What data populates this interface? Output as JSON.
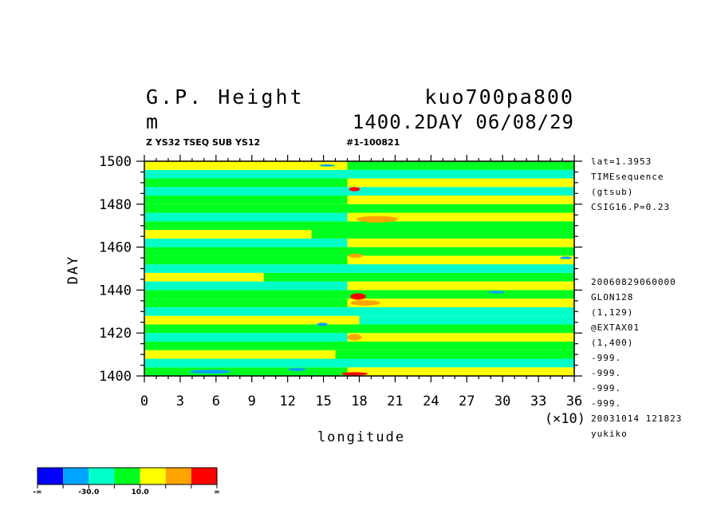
{
  "header": {
    "title_left": "G.P. Height",
    "title_right": "kuo700pa800",
    "unit": "m",
    "time_label": "1400.2DAY 06/08/29",
    "subtitle_left": "Z YS32 TSEQ SUB YS12",
    "subtitle_right": "#1-100821"
  },
  "side_info": {
    "top": [
      "lat=1.3953",
      "TIMEsequence",
      "(gtsub)",
      "CSIG16.P=0.23"
    ],
    "bottom": [
      "20060829060000",
      "GLON128",
      "(1,129)",
      "@EXTAX01",
      "(1,400)",
      "-999.",
      "-999.",
      "-999.",
      "-999.",
      "20031014 121823",
      "yukiko"
    ]
  },
  "colorbar": {
    "colors": [
      "#0000ff",
      "#00a5ff",
      "#00ffc8",
      "#00ff1e",
      "#ffff00",
      "#ffa500",
      "#ff0000"
    ],
    "labels": [
      {
        "text": "-∞",
        "boundary": 0
      },
      {
        "text": "-30.0",
        "boundary": 2
      },
      {
        "text": "10.0",
        "boundary": 4
      },
      {
        "text": "∞",
        "boundary": 7
      }
    ]
  },
  "chart_data": {
    "type": "heatmap",
    "xlabel": "longitude",
    "ylabel": "DAY",
    "x_multiplier_label": "(×10)",
    "xlim": [
      0,
      36
    ],
    "ylim": [
      1400,
      1500
    ],
    "xticks": [
      0,
      3,
      6,
      9,
      12,
      15,
      18,
      21,
      24,
      27,
      30,
      33,
      36
    ],
    "yticks": [
      1400,
      1420,
      1440,
      1460,
      1480,
      1500
    ],
    "bands": [
      {
        "day_from": 1400,
        "day_to": 1404,
        "segments": [
          {
            "from": 0,
            "to": 17,
            "color": "#00ff1e"
          },
          {
            "from": 17,
            "to": 36,
            "color": "#ffff00"
          }
        ]
      },
      {
        "day_from": 1404,
        "day_to": 1408,
        "segments": [
          {
            "from": 0,
            "to": 36,
            "color": "#00ffc8"
          }
        ]
      },
      {
        "day_from": 1408,
        "day_to": 1412,
        "segments": [
          {
            "from": 0,
            "to": 16,
            "color": "#ffff00"
          },
          {
            "from": 16,
            "to": 36,
            "color": "#00ff1e"
          }
        ]
      },
      {
        "day_from": 1412,
        "day_to": 1416,
        "segments": [
          {
            "from": 0,
            "to": 36,
            "color": "#00ff1e"
          }
        ]
      },
      {
        "day_from": 1416,
        "day_to": 1420,
        "segments": [
          {
            "from": 0,
            "to": 17,
            "color": "#00ffc8"
          },
          {
            "from": 17,
            "to": 36,
            "color": "#ffff00"
          }
        ]
      },
      {
        "day_from": 1420,
        "day_to": 1424,
        "segments": [
          {
            "from": 0,
            "to": 36,
            "color": "#00ff1e"
          }
        ]
      },
      {
        "day_from": 1424,
        "day_to": 1428,
        "segments": [
          {
            "from": 0,
            "to": 18,
            "color": "#ffff00"
          },
          {
            "from": 18,
            "to": 36,
            "color": "#00ffc8"
          }
        ]
      },
      {
        "day_from": 1428,
        "day_to": 1432,
        "segments": [
          {
            "from": 0,
            "to": 36,
            "color": "#00ffc8"
          }
        ]
      },
      {
        "day_from": 1432,
        "day_to": 1436,
        "segments": [
          {
            "from": 0,
            "to": 17,
            "color": "#00ff1e"
          },
          {
            "from": 17,
            "to": 36,
            "color": "#ffff00"
          }
        ]
      },
      {
        "day_from": 1436,
        "day_to": 1440,
        "segments": [
          {
            "from": 0,
            "to": 36,
            "color": "#00ff1e"
          }
        ]
      },
      {
        "day_from": 1440,
        "day_to": 1444,
        "segments": [
          {
            "from": 0,
            "to": 17,
            "color": "#00ffc8"
          },
          {
            "from": 17,
            "to": 36,
            "color": "#ffff00"
          }
        ]
      },
      {
        "day_from": 1444,
        "day_to": 1448,
        "segments": [
          {
            "from": 0,
            "to": 10,
            "color": "#ffff00"
          },
          {
            "from": 10,
            "to": 36,
            "color": "#00ff1e"
          }
        ]
      },
      {
        "day_from": 1448,
        "day_to": 1452,
        "segments": [
          {
            "from": 0,
            "to": 36,
            "color": "#00ffc8"
          }
        ]
      },
      {
        "day_from": 1452,
        "day_to": 1456,
        "segments": [
          {
            "from": 0,
            "to": 17,
            "color": "#00ff1e"
          },
          {
            "from": 17,
            "to": 36,
            "color": "#ffff00"
          }
        ]
      },
      {
        "day_from": 1456,
        "day_to": 1460,
        "segments": [
          {
            "from": 0,
            "to": 36,
            "color": "#00ff1e"
          }
        ]
      },
      {
        "day_from": 1460,
        "day_to": 1464,
        "segments": [
          {
            "from": 0,
            "to": 17,
            "color": "#00ffc8"
          },
          {
            "from": 17,
            "to": 36,
            "color": "#ffff00"
          }
        ]
      },
      {
        "day_from": 1464,
        "day_to": 1468,
        "segments": [
          {
            "from": 0,
            "to": 14,
            "color": "#ffff00"
          },
          {
            "from": 14,
            "to": 36,
            "color": "#00ff1e"
          }
        ]
      },
      {
        "day_from": 1468,
        "day_to": 1472,
        "segments": [
          {
            "from": 0,
            "to": 36,
            "color": "#00ff1e"
          }
        ]
      },
      {
        "day_from": 1472,
        "day_to": 1476,
        "segments": [
          {
            "from": 0,
            "to": 17,
            "color": "#00ffc8"
          },
          {
            "from": 17,
            "to": 36,
            "color": "#ffff00"
          }
        ]
      },
      {
        "day_from": 1476,
        "day_to": 1480,
        "segments": [
          {
            "from": 0,
            "to": 36,
            "color": "#00ff1e"
          }
        ]
      },
      {
        "day_from": 1480,
        "day_to": 1484,
        "segments": [
          {
            "from": 0,
            "to": 17,
            "color": "#00ff1e"
          },
          {
            "from": 17,
            "to": 36,
            "color": "#ffff00"
          }
        ]
      },
      {
        "day_from": 1484,
        "day_to": 1488,
        "segments": [
          {
            "from": 0,
            "to": 36,
            "color": "#00ffc8"
          }
        ]
      },
      {
        "day_from": 1488,
        "day_to": 1492,
        "segments": [
          {
            "from": 0,
            "to": 17,
            "color": "#00ff1e"
          },
          {
            "from": 17,
            "to": 36,
            "color": "#ffff00"
          }
        ]
      },
      {
        "day_from": 1492,
        "day_to": 1496,
        "segments": [
          {
            "from": 0,
            "to": 36,
            "color": "#00ffc8"
          }
        ]
      },
      {
        "day_from": 1496,
        "day_to": 1500,
        "segments": [
          {
            "from": 0,
            "to": 17,
            "color": "#ffff00"
          },
          {
            "from": 17,
            "to": 36,
            "color": "#00ff1e"
          }
        ]
      }
    ],
    "patches": [
      {
        "x": 17.6,
        "day": 1401,
        "w": 2.2,
        "h": 1.5,
        "color": "#ff0000"
      },
      {
        "x": 17.6,
        "day": 1418,
        "w": 1.2,
        "h": 3,
        "color": "#ffa500"
      },
      {
        "x": 17.9,
        "day": 1437,
        "w": 1.3,
        "h": 3,
        "color": "#ff0000"
      },
      {
        "x": 17.7,
        "day": 1456,
        "w": 1.2,
        "h": 2,
        "color": "#ffa500"
      },
      {
        "x": 17.6,
        "day": 1487,
        "w": 0.9,
        "h": 2,
        "color": "#ff0000"
      },
      {
        "x": 19.5,
        "day": 1473,
        "w": 3.5,
        "h": 3,
        "color": "#ffa500"
      },
      {
        "x": 18.5,
        "day": 1434,
        "w": 2.5,
        "h": 2.5,
        "color": "#ffa500"
      },
      {
        "x": 14.9,
        "day": 1424,
        "w": 0.9,
        "h": 1.5,
        "color": "#00a5ff"
      },
      {
        "x": 5.5,
        "day": 1402,
        "w": 3.5,
        "h": 1.8,
        "color": "#00a5ff"
      },
      {
        "x": 12.8,
        "day": 1403,
        "w": 1.5,
        "h": 1.5,
        "color": "#00a5ff"
      },
      {
        "x": 29.5,
        "day": 1439,
        "w": 1.4,
        "h": 1.2,
        "color": "#00a5ff"
      },
      {
        "x": 35.3,
        "day": 1455,
        "w": 1,
        "h": 1.2,
        "color": "#00a5ff"
      },
      {
        "x": 15.3,
        "day": 1498,
        "w": 1.3,
        "h": 1,
        "color": "#00a5ff"
      }
    ]
  }
}
